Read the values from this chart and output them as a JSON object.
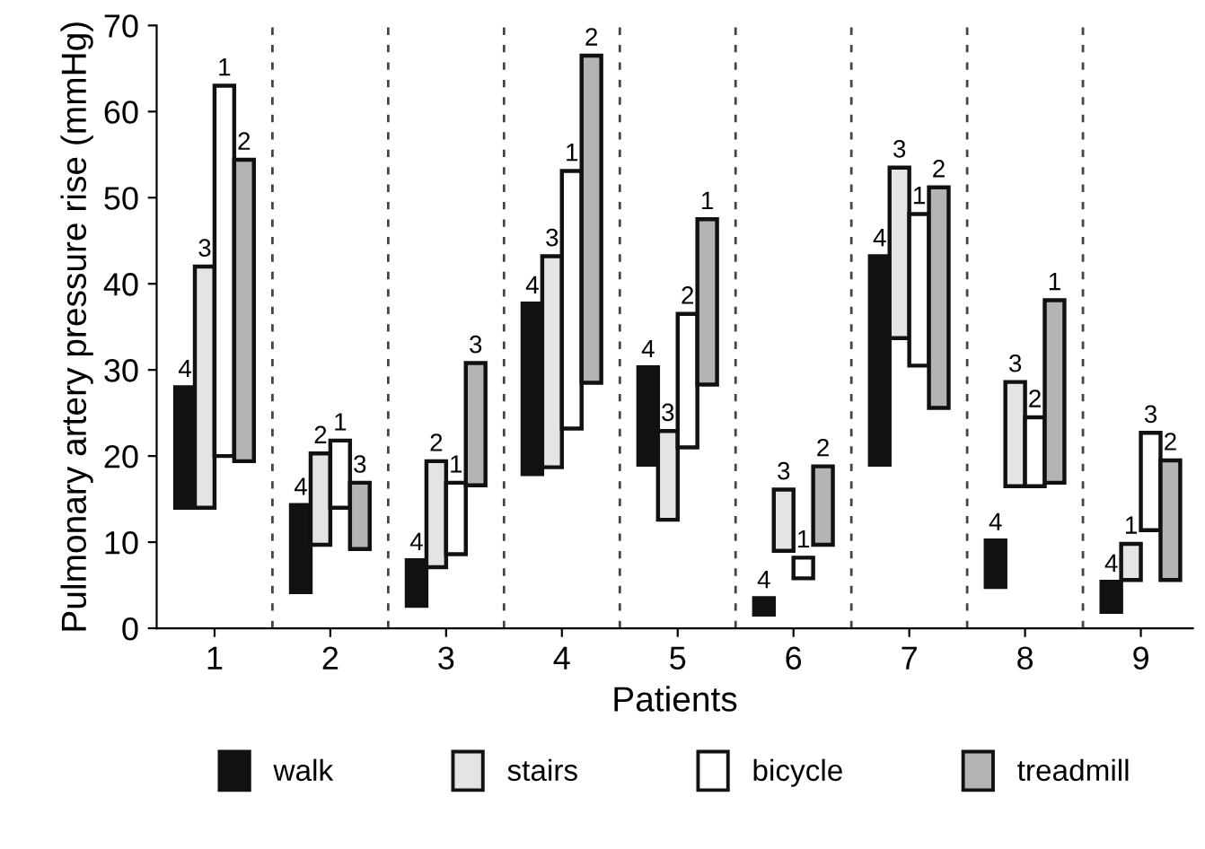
{
  "chart_data": {
    "type": "bar",
    "xlabel": "Patients",
    "ylabel": "Pulmonary artery pressure rise (mmHg)",
    "x": [
      1,
      2,
      3,
      4,
      5,
      6,
      7,
      8,
      9
    ],
    "xlim": [
      0.5,
      9.45
    ],
    "xticks": [
      1,
      2,
      3,
      4,
      5,
      6,
      7,
      8,
      9
    ],
    "ylim": [
      0,
      70
    ],
    "yticks": [
      0,
      10,
      20,
      30,
      40,
      50,
      60,
      70
    ],
    "grid": false,
    "legend": "bottom",
    "series": [
      {
        "name": "walk",
        "color": "#111111",
        "base": [
          14,
          4.2,
          2.6,
          17.9,
          19,
          1.6,
          19,
          4.8,
          1.9
        ],
        "values": [
          14,
          10.1,
          5.3,
          19.8,
          11.3,
          1.9,
          24.2,
          5.4,
          3.5
        ]
      },
      {
        "name": "stairs",
        "color": "#e4e4e4",
        "base": [
          14,
          9.7,
          7.1,
          18.7,
          12.6,
          9,
          33.7,
          16.5,
          5.6
        ],
        "values": [
          28,
          10.6,
          12.3,
          24.5,
          10.3,
          7.1,
          19.8,
          12.1,
          4.2
        ]
      },
      {
        "name": "bicycle",
        "color": "#ffffff",
        "base": [
          20,
          14,
          8.6,
          23.2,
          21,
          5.8,
          30.5,
          16.5,
          11.4
        ],
        "values": [
          43,
          7.8,
          8.3,
          29.9,
          15.5,
          2.4,
          17.6,
          8,
          11.3
        ]
      },
      {
        "name": "treadmill",
        "color": "#b4b4b4",
        "base": [
          19.4,
          9.2,
          16.6,
          28.5,
          28.3,
          9.7,
          25.6,
          16.9,
          5.6
        ],
        "values": [
          35,
          7.7,
          14.2,
          38,
          19.2,
          9.1,
          25.6,
          21.2,
          13.9
        ]
      }
    ],
    "annotations": [
      "4",
      "4",
      "4",
      "4",
      "4",
      "4",
      "4",
      "4",
      "4",
      "3",
      "2",
      "2",
      "3",
      "3",
      "3",
      "3",
      "3",
      "1",
      "1",
      "1",
      "1",
      "1",
      "2",
      "1",
      "1",
      "2",
      "3",
      "2",
      "3",
      "3",
      "2",
      "1",
      "2",
      "2",
      "1",
      "2"
    ],
    "ref_lines": [
      {
        "axis": "x",
        "value": 1.5,
        "line_style": "dashed"
      },
      {
        "axis": "x",
        "value": 2.5,
        "line_style": "dashed"
      },
      {
        "axis": "x",
        "value": 3.5,
        "line_style": "dashed"
      },
      {
        "axis": "x",
        "value": 4.5,
        "line_style": "dashed"
      },
      {
        "axis": "x",
        "value": 5.5,
        "line_style": "dashed"
      },
      {
        "axis": "x",
        "value": 6.5,
        "line_style": "dashed"
      },
      {
        "axis": "x",
        "value": 7.5,
        "line_style": "dashed"
      },
      {
        "axis": "x",
        "value": 8.5,
        "line_style": "dashed"
      }
    ]
  }
}
